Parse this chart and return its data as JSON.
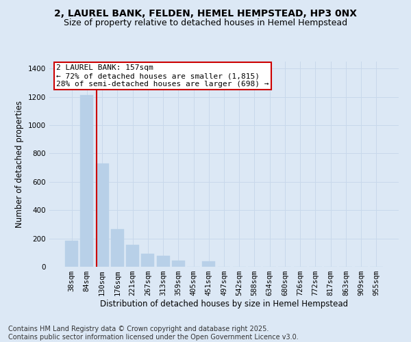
{
  "title_line1": "2, LAUREL BANK, FELDEN, HEMEL HEMPSTEAD, HP3 0NX",
  "title_line2": "Size of property relative to detached houses in Hemel Hempstead",
  "xlabel": "Distribution of detached houses by size in Hemel Hempstead",
  "ylabel": "Number of detached properties",
  "categories": [
    "38sqm",
    "84sqm",
    "130sqm",
    "176sqm",
    "221sqm",
    "267sqm",
    "313sqm",
    "359sqm",
    "405sqm",
    "451sqm",
    "497sqm",
    "542sqm",
    "588sqm",
    "634sqm",
    "680sqm",
    "726sqm",
    "772sqm",
    "817sqm",
    "863sqm",
    "909sqm",
    "955sqm"
  ],
  "values": [
    185,
    1215,
    730,
    265,
    155,
    90,
    75,
    45,
    0,
    40,
    0,
    0,
    0,
    0,
    0,
    0,
    0,
    0,
    0,
    0,
    0
  ],
  "bar_color": "#b8d0e8",
  "bar_edgecolor": "#b8d0e8",
  "grid_color": "#c8d8eb",
  "bg_color": "#dce8f5",
  "annotation_text": "2 LAUREL BANK: 157sqm\n← 72% of detached houses are smaller (1,815)\n28% of semi-detached houses are larger (698) →",
  "annotation_box_color": "#ffffff",
  "annotation_box_edgecolor": "#cc0000",
  "vline_color": "#cc0000",
  "vline_pos": 1.65,
  "ylim": [
    0,
    1450
  ],
  "yticks": [
    0,
    200,
    400,
    600,
    800,
    1000,
    1200,
    1400
  ],
  "title_fontsize": 10,
  "subtitle_fontsize": 9,
  "axis_label_fontsize": 8.5,
  "tick_fontsize": 7.5,
  "annotation_fontsize": 8,
  "footer_fontsize": 7,
  "footer_line1": "Contains HM Land Registry data © Crown copyright and database right 2025.",
  "footer_line2": "Contains public sector information licensed under the Open Government Licence v3.0."
}
